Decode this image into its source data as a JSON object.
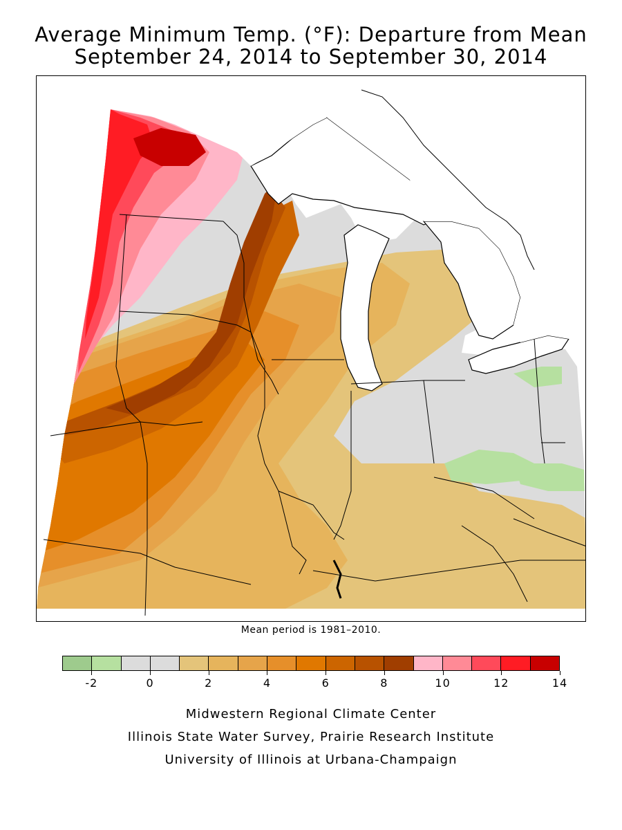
{
  "title": {
    "line1": "Average Minimum Temp. (°F): Departure from Mean",
    "line2": "September 24, 2014 to September 30, 2014"
  },
  "note": "Mean period is 1981–2010.",
  "legend": {
    "colors": [
      "#9ecb8d",
      "#b6e0a0",
      "#dcdcdc",
      "#dcdcdc",
      "#e4c47a",
      "#e6b45c",
      "#e6a44a",
      "#e68f2a",
      "#e07800",
      "#cc6500",
      "#b85200",
      "#a03e00",
      "#ffb6c8",
      "#ff8a96",
      "#ff4a5a",
      "#ff1c24",
      "#c80000"
    ],
    "tick_labels": [
      "-2",
      "0",
      "2",
      "4",
      "6",
      "8",
      "10",
      "12",
      "14"
    ],
    "tick_values": [
      -2,
      0,
      2,
      4,
      6,
      8,
      10,
      12,
      14
    ],
    "range": [
      -3,
      14
    ]
  },
  "credits": {
    "line1": "Midwestern Regional Climate Center",
    "line2": "Illinois State Water Survey, Prairie Research Institute",
    "line3": "University of Illinois at Urbana-Champaign"
  }
}
